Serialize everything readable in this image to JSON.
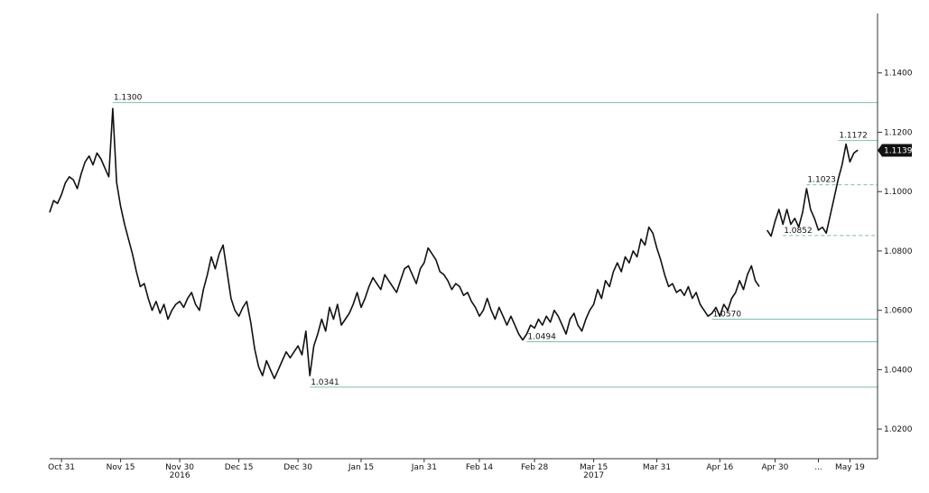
{
  "chart_data": {
    "type": "line",
    "title": "",
    "xlabel": "",
    "ylabel": "",
    "ylim": [
      1.01,
      1.16
    ],
    "y_ticks": [
      "1.0200",
      "1.0400",
      "1.0600",
      "1.0800",
      "1.1000",
      "1.1200",
      "1.1400"
    ],
    "y_tick_values": [
      1.02,
      1.04,
      1.06,
      1.08,
      1.1,
      1.12,
      1.14
    ],
    "x_ticks": [
      "Oct 31",
      "Nov 15",
      "Nov 30",
      "Dec 15",
      "Dec 30",
      "Jan 15",
      "Jan 31",
      "Feb 14",
      "Feb 28",
      "Mar 15",
      "Mar 31",
      "Apr 16",
      "Apr 30",
      "...",
      "May 19"
    ],
    "x_tick_days": [
      0,
      15,
      30,
      45,
      60,
      76,
      92,
      106,
      120,
      135,
      151,
      167,
      181,
      192,
      200
    ],
    "year_labels": [
      {
        "label": "2016",
        "day": 30
      },
      {
        "label": "2017",
        "day": 135
      }
    ],
    "last_value": {
      "label": "1.1139",
      "value": 1.1139
    },
    "annotations": [
      {
        "label": "1.1300",
        "value": 1.13,
        "day": 13,
        "style": "solid"
      },
      {
        "label": "1.0341",
        "value": 1.0341,
        "day": 63,
        "style": "solid"
      },
      {
        "label": "1.0494",
        "value": 1.0494,
        "day": 118,
        "style": "solid"
      },
      {
        "label": "1.0570",
        "value": 1.057,
        "day": 165,
        "style": "solid"
      },
      {
        "label": "1.0852",
        "value": 1.0852,
        "day": 183,
        "style": "dashed"
      },
      {
        "label": "1.1023",
        "value": 1.1023,
        "day": 189,
        "style": "dashed"
      },
      {
        "label": "1.1172",
        "value": 1.1172,
        "day": 197,
        "style": "solid"
      }
    ],
    "colors": {
      "line": "#111111",
      "annotation": "#7fbfb4",
      "badge": "#111111"
    },
    "series": [
      {
        "values": [
          [
            -3,
            1.093
          ],
          [
            -2,
            1.097
          ],
          [
            -1,
            1.096
          ],
          [
            0,
            1.099
          ],
          [
            1,
            1.103
          ],
          [
            2,
            1.105
          ],
          [
            3,
            1.104
          ],
          [
            4,
            1.101
          ],
          [
            5,
            1.106
          ],
          [
            6,
            1.11
          ],
          [
            7,
            1.112
          ],
          [
            8,
            1.109
          ],
          [
            9,
            1.113
          ],
          [
            10,
            1.111
          ],
          [
            11,
            1.108
          ],
          [
            12,
            1.105
          ],
          [
            13,
            1.128
          ],
          [
            14,
            1.103
          ],
          [
            15,
            1.095
          ],
          [
            16,
            1.089
          ],
          [
            17,
            1.084
          ],
          [
            18,
            1.079
          ],
          [
            19,
            1.073
          ],
          [
            20,
            1.068
          ],
          [
            21,
            1.069
          ],
          [
            22,
            1.064
          ],
          [
            23,
            1.06
          ],
          [
            24,
            1.063
          ],
          [
            25,
            1.059
          ],
          [
            26,
            1.062
          ],
          [
            27,
            1.057
          ],
          [
            28,
            1.06
          ],
          [
            29,
            1.062
          ],
          [
            30,
            1.063
          ],
          [
            31,
            1.061
          ],
          [
            32,
            1.064
          ],
          [
            33,
            1.066
          ],
          [
            34,
            1.062
          ],
          [
            35,
            1.06
          ],
          [
            36,
            1.067
          ],
          [
            37,
            1.072
          ],
          [
            38,
            1.078
          ],
          [
            39,
            1.074
          ],
          [
            40,
            1.079
          ],
          [
            41,
            1.082
          ],
          [
            42,
            1.073
          ],
          [
            43,
            1.064
          ],
          [
            44,
            1.06
          ],
          [
            45,
            1.058
          ],
          [
            46,
            1.061
          ],
          [
            47,
            1.063
          ],
          [
            48,
            1.056
          ],
          [
            49,
            1.047
          ],
          [
            50,
            1.041
          ],
          [
            51,
            1.038
          ],
          [
            52,
            1.043
          ],
          [
            53,
            1.04
          ],
          [
            54,
            1.037
          ],
          [
            55,
            1.04
          ],
          [
            56,
            1.043
          ],
          [
            57,
            1.046
          ],
          [
            58,
            1.044
          ],
          [
            59,
            1.046
          ],
          [
            60,
            1.048
          ],
          [
            61,
            1.045
          ],
          [
            62,
            1.053
          ],
          [
            63,
            1.038
          ],
          [
            64,
            1.048
          ],
          [
            65,
            1.052
          ],
          [
            66,
            1.057
          ],
          [
            67,
            1.053
          ],
          [
            68,
            1.061
          ],
          [
            69,
            1.057
          ],
          [
            70,
            1.062
          ],
          [
            71,
            1.055
          ],
          [
            72,
            1.057
          ],
          [
            73,
            1.059
          ],
          [
            74,
            1.062
          ],
          [
            75,
            1.066
          ],
          [
            76,
            1.061
          ],
          [
            77,
            1.064
          ],
          [
            78,
            1.068
          ],
          [
            79,
            1.071
          ],
          [
            80,
            1.069
          ],
          [
            81,
            1.067
          ],
          [
            82,
            1.072
          ],
          [
            83,
            1.07
          ],
          [
            84,
            1.068
          ],
          [
            85,
            1.066
          ],
          [
            86,
            1.07
          ],
          [
            87,
            1.074
          ],
          [
            88,
            1.075
          ],
          [
            89,
            1.072
          ],
          [
            90,
            1.069
          ],
          [
            91,
            1.074
          ],
          [
            92,
            1.076
          ],
          [
            93,
            1.081
          ],
          [
            94,
            1.079
          ],
          [
            95,
            1.077
          ],
          [
            96,
            1.073
          ],
          [
            97,
            1.072
          ],
          [
            98,
            1.07
          ],
          [
            99,
            1.067
          ],
          [
            100,
            1.069
          ],
          [
            101,
            1.068
          ],
          [
            102,
            1.065
          ],
          [
            103,
            1.066
          ],
          [
            104,
            1.063
          ],
          [
            105,
            1.061
          ],
          [
            106,
            1.058
          ],
          [
            107,
            1.06
          ],
          [
            108,
            1.064
          ],
          [
            109,
            1.06
          ],
          [
            110,
            1.057
          ],
          [
            111,
            1.061
          ],
          [
            112,
            1.058
          ],
          [
            113,
            1.055
          ],
          [
            114,
            1.058
          ],
          [
            115,
            1.055
          ],
          [
            116,
            1.052
          ],
          [
            117,
            1.05
          ],
          [
            118,
            1.052
          ],
          [
            119,
            1.055
          ],
          [
            120,
            1.054
          ],
          [
            121,
            1.057
          ],
          [
            122,
            1.055
          ],
          [
            123,
            1.058
          ],
          [
            124,
            1.056
          ],
          [
            125,
            1.06
          ],
          [
            126,
            1.058
          ],
          [
            127,
            1.055
          ],
          [
            128,
            1.052
          ],
          [
            129,
            1.057
          ],
          [
            130,
            1.059
          ],
          [
            131,
            1.055
          ],
          [
            132,
            1.053
          ],
          [
            133,
            1.057
          ],
          [
            134,
            1.06
          ],
          [
            135,
            1.062
          ],
          [
            136,
            1.067
          ],
          [
            137,
            1.064
          ],
          [
            138,
            1.07
          ],
          [
            139,
            1.068
          ],
          [
            140,
            1.073
          ],
          [
            141,
            1.076
          ],
          [
            142,
            1.073
          ],
          [
            143,
            1.078
          ],
          [
            144,
            1.076
          ],
          [
            145,
            1.08
          ],
          [
            146,
            1.078
          ],
          [
            147,
            1.084
          ],
          [
            148,
            1.082
          ],
          [
            149,
            1.088
          ],
          [
            150,
            1.086
          ],
          [
            151,
            1.081
          ],
          [
            152,
            1.077
          ],
          [
            153,
            1.072
          ],
          [
            154,
            1.068
          ],
          [
            155,
            1.069
          ],
          [
            156,
            1.066
          ],
          [
            157,
            1.067
          ],
          [
            158,
            1.065
          ],
          [
            159,
            1.068
          ],
          [
            160,
            1.064
          ],
          [
            161,
            1.066
          ],
          [
            162,
            1.062
          ],
          [
            163,
            1.06
          ],
          [
            164,
            1.058
          ],
          [
            165,
            1.059
          ],
          [
            166,
            1.061
          ],
          [
            167,
            1.058
          ],
          [
            168,
            1.062
          ],
          [
            169,
            1.06
          ],
          [
            170,
            1.064
          ],
          [
            171,
            1.066
          ],
          [
            172,
            1.07
          ],
          [
            173,
            1.067
          ],
          [
            174,
            1.072
          ],
          [
            175,
            1.075
          ],
          [
            176,
            1.07
          ],
          [
            177,
            1.068
          ],
          [
            178,
            null
          ],
          [
            179,
            1.087
          ],
          [
            180,
            1.085
          ],
          [
            181,
            1.09
          ],
          [
            182,
            1.094
          ],
          [
            183,
            1.089
          ],
          [
            184,
            1.094
          ],
          [
            185,
            1.089
          ],
          [
            186,
            1.091
          ],
          [
            187,
            1.088
          ],
          [
            188,
            1.093
          ],
          [
            189,
            1.101
          ],
          [
            190,
            1.094
          ],
          [
            191,
            1.091
          ],
          [
            192,
            1.087
          ],
          [
            193,
            1.088
          ],
          [
            194,
            1.086
          ],
          [
            195,
            1.092
          ],
          [
            196,
            1.098
          ],
          [
            197,
            1.104
          ],
          [
            198,
            1.109
          ],
          [
            199,
            1.116
          ],
          [
            200,
            1.11
          ],
          [
            201,
            1.113
          ],
          [
            202,
            1.114
          ]
        ]
      }
    ]
  }
}
